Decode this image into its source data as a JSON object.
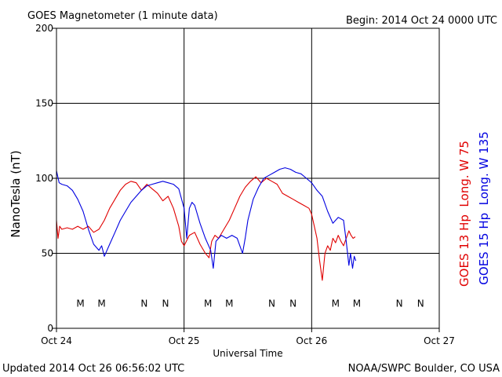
{
  "chart_data": {
    "type": "line",
    "title": "GOES Magnetometer (1 minute data)",
    "begin_label": "Begin:  2014 Oct 24 0000 UTC",
    "xlabel": "Universal Time",
    "ylabel": "NanoTesla (nT)",
    "updated": "Updated 2014 Oct 26 06:56:02 UTC",
    "credit": "NOAA/SWPC Boulder, CO USA",
    "xlim": [
      0,
      72
    ],
    "ylim": [
      0,
      200
    ],
    "x_unit": "hours since 2014 Oct 24 0000 UTC",
    "x_ticks": [
      {
        "x": 0,
        "label": "Oct 24"
      },
      {
        "x": 24,
        "label": "Oct 25"
      },
      {
        "x": 48,
        "label": "Oct 26"
      },
      {
        "x": 72,
        "label": "Oct 27"
      }
    ],
    "y_ticks": [
      0,
      50,
      100,
      150,
      200
    ],
    "grid": true,
    "markers_y": 17,
    "series": [
      {
        "name": "GOES 13 Hp  Long. W 75",
        "color": "#e00000",
        "markers": [
          {
            "x": 4.5,
            "label": "M"
          },
          {
            "x": 16.5,
            "label": "N"
          },
          {
            "x": 28.5,
            "label": "M"
          },
          {
            "x": 40.5,
            "label": "N"
          },
          {
            "x": 52.5,
            "label": "M"
          },
          {
            "x": 64.5,
            "label": "N"
          }
        ],
        "points": [
          [
            0,
            72
          ],
          [
            0.3,
            60
          ],
          [
            0.6,
            68
          ],
          [
            1,
            66
          ],
          [
            2,
            67
          ],
          [
            3,
            66
          ],
          [
            4,
            68
          ],
          [
            5,
            66
          ],
          [
            6,
            68
          ],
          [
            7,
            64
          ],
          [
            8,
            66
          ],
          [
            9,
            72
          ],
          [
            10,
            80
          ],
          [
            11,
            86
          ],
          [
            12,
            92
          ],
          [
            13,
            96
          ],
          [
            14,
            98
          ],
          [
            15,
            97
          ],
          [
            16,
            92
          ],
          [
            17,
            96
          ],
          [
            18,
            93
          ],
          [
            19,
            90
          ],
          [
            20,
            85
          ],
          [
            21,
            88
          ],
          [
            22,
            80
          ],
          [
            23,
            68
          ],
          [
            23.5,
            58
          ],
          [
            24,
            55
          ],
          [
            25,
            62
          ],
          [
            26,
            64
          ],
          [
            27,
            56
          ],
          [
            28,
            50
          ],
          [
            28.7,
            47
          ],
          [
            29.2,
            58
          ],
          [
            29.8,
            62
          ],
          [
            30.5,
            60
          ],
          [
            31.5,
            66
          ],
          [
            32.5,
            72
          ],
          [
            33.5,
            80
          ],
          [
            34.5,
            88
          ],
          [
            35.5,
            94
          ],
          [
            36.5,
            98
          ],
          [
            37.5,
            101
          ],
          [
            38.5,
            97
          ],
          [
            39.5,
            100
          ],
          [
            40.5,
            98
          ],
          [
            41.5,
            96
          ],
          [
            42.5,
            90
          ],
          [
            43.5,
            88
          ],
          [
            44.5,
            86
          ],
          [
            45.5,
            84
          ],
          [
            46.5,
            82
          ],
          [
            47.5,
            80
          ],
          [
            48,
            76
          ],
          [
            49,
            60
          ],
          [
            49.5,
            45
          ],
          [
            50,
            32
          ],
          [
            50.5,
            50
          ],
          [
            51,
            55
          ],
          [
            51.5,
            52
          ],
          [
            52,
            60
          ],
          [
            52.5,
            57
          ],
          [
            53,
            62
          ],
          [
            53.5,
            58
          ],
          [
            54,
            55
          ],
          [
            55,
            65
          ],
          [
            55.4,
            62
          ],
          [
            55.8,
            60
          ],
          [
            56.2,
            61
          ]
        ]
      },
      {
        "name": "GOES 15 Hp  Long. W 135",
        "color": "#0000e0",
        "markers": [
          {
            "x": 8.5,
            "label": "M"
          },
          {
            "x": 20.5,
            "label": "N"
          },
          {
            "x": 32.5,
            "label": "M"
          },
          {
            "x": 44.5,
            "label": "N"
          },
          {
            "x": 56.5,
            "label": "M"
          },
          {
            "x": 68.5,
            "label": "N"
          }
        ],
        "points": [
          [
            0,
            105
          ],
          [
            0.5,
            97
          ],
          [
            1,
            96
          ],
          [
            2,
            95
          ],
          [
            3,
            92
          ],
          [
            4,
            86
          ],
          [
            5,
            78
          ],
          [
            6,
            66
          ],
          [
            7,
            56
          ],
          [
            8,
            52
          ],
          [
            8.5,
            55
          ],
          [
            9,
            48
          ],
          [
            10,
            56
          ],
          [
            11,
            64
          ],
          [
            12,
            72
          ],
          [
            13,
            78
          ],
          [
            14,
            84
          ],
          [
            15,
            88
          ],
          [
            16,
            92
          ],
          [
            17,
            95
          ],
          [
            18,
            96
          ],
          [
            19,
            97
          ],
          [
            20,
            98
          ],
          [
            21,
            97
          ],
          [
            22,
            96
          ],
          [
            23,
            93
          ],
          [
            24,
            80
          ],
          [
            24.5,
            60
          ],
          [
            25,
            80
          ],
          [
            25.5,
            84
          ],
          [
            26,
            82
          ],
          [
            27,
            70
          ],
          [
            28,
            60
          ],
          [
            29,
            52
          ],
          [
            29.5,
            40
          ],
          [
            30,
            58
          ],
          [
            31,
            62
          ],
          [
            32,
            60
          ],
          [
            33,
            62
          ],
          [
            34,
            60
          ],
          [
            35,
            50
          ],
          [
            35.5,
            60
          ],
          [
            36,
            72
          ],
          [
            37,
            86
          ],
          [
            38,
            94
          ],
          [
            39,
            100
          ],
          [
            40,
            102
          ],
          [
            41,
            104
          ],
          [
            42,
            106
          ],
          [
            43,
            107
          ],
          [
            44,
            106
          ],
          [
            45,
            104
          ],
          [
            46,
            103
          ],
          [
            47,
            100
          ],
          [
            48,
            97
          ],
          [
            49,
            92
          ],
          [
            50,
            88
          ],
          [
            51,
            78
          ],
          [
            52,
            70
          ],
          [
            53,
            74
          ],
          [
            54,
            72
          ],
          [
            54.5,
            58
          ],
          [
            55,
            42
          ],
          [
            55.3,
            50
          ],
          [
            55.7,
            40
          ],
          [
            56,
            48
          ],
          [
            56.3,
            45
          ]
        ]
      }
    ]
  }
}
